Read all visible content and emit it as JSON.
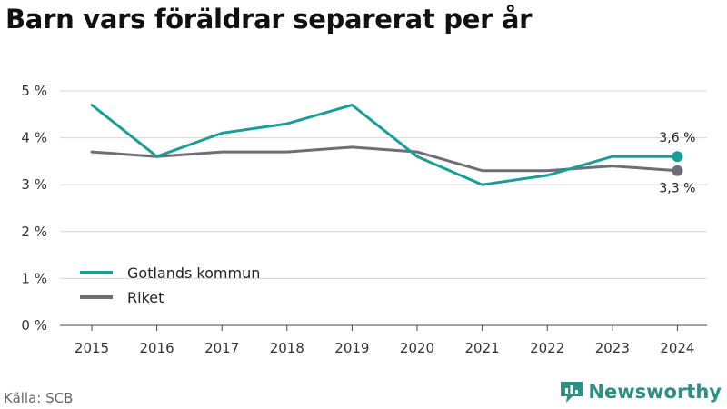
{
  "title": "Barn vars föräldrar separerat per år",
  "source": "Källa: SCB",
  "brand": "Newsworthy",
  "colors": {
    "brand": "#2e8f83",
    "grid": "#d6d6d6"
  },
  "chart_data": {
    "type": "line",
    "title": "Barn vars föräldrar separerat per år",
    "categories": [
      "2015",
      "2016",
      "2017",
      "2018",
      "2019",
      "2020",
      "2021",
      "2022",
      "2023",
      "2024"
    ],
    "ylim": [
      0,
      5
    ],
    "yticks": [
      0,
      1,
      2,
      3,
      4,
      5
    ],
    "ytick_labels": [
      "0 %",
      "1 %",
      "2 %",
      "3 %",
      "4 %",
      "5 %"
    ],
    "grid": true,
    "legend_position": "bottom-left",
    "series": [
      {
        "name": "Gotlands kommun",
        "color": "#1a9e95",
        "values": [
          4.7,
          3.6,
          4.1,
          4.3,
          4.7,
          3.6,
          3.0,
          3.2,
          3.6,
          3.6
        ],
        "end_label": "3,6 %"
      },
      {
        "name": "Riket",
        "color": "#6f6e76",
        "values": [
          3.7,
          3.6,
          3.7,
          3.7,
          3.8,
          3.7,
          3.3,
          3.3,
          3.4,
          3.3
        ],
        "end_label": "3,3 %"
      }
    ]
  }
}
